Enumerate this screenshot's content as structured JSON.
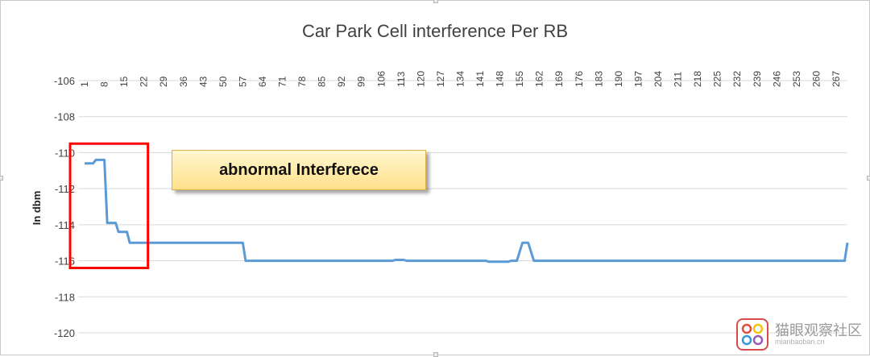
{
  "chart_data": {
    "type": "line",
    "title": "Car Park Cell interference Per RB",
    "ylabel": "In dbm",
    "xlabel": "",
    "ylim": [
      -120,
      -106
    ],
    "yticks": [
      "-106",
      "-108",
      "-110",
      "-112",
      "-114",
      "-116",
      "-118",
      "-120"
    ],
    "xticks": [
      "1",
      "8",
      "15",
      "22",
      "29",
      "36",
      "43",
      "50",
      "57",
      "64",
      "71",
      "78",
      "85",
      "92",
      "99",
      "106",
      "113",
      "120",
      "127",
      "134",
      "141",
      "148",
      "155",
      "162",
      "169",
      "176",
      "183",
      "190",
      "197",
      "204",
      "211",
      "218",
      "225",
      "232",
      "239",
      "246",
      "253",
      "260",
      "267"
    ],
    "x_axis_position": "top",
    "grid": true,
    "legend": "none",
    "series": [
      {
        "color": "#5b9bd5",
        "points": [
          [
            1,
            -110.6
          ],
          [
            4,
            -110.6
          ],
          [
            5,
            -110.4
          ],
          [
            8,
            -110.4
          ],
          [
            9,
            -113.9
          ],
          [
            12,
            -113.9
          ],
          [
            13,
            -114.4
          ],
          [
            16,
            -114.4
          ],
          [
            17,
            -115.0
          ],
          [
            57,
            -115.0
          ],
          [
            58,
            -116.0
          ],
          [
            110,
            -116.0
          ],
          [
            111,
            -115.95
          ],
          [
            114,
            -115.95
          ],
          [
            115,
            -116.0
          ],
          [
            143,
            -116.0
          ],
          [
            144,
            -116.05
          ],
          [
            151,
            -116.05
          ],
          [
            152,
            -116.0
          ],
          [
            154,
            -116.0
          ],
          [
            156,
            -115.0
          ],
          [
            158,
            -115.0
          ],
          [
            160,
            -116.0
          ],
          [
            270,
            -116.0
          ],
          [
            271,
            -115.0
          ]
        ]
      }
    ]
  },
  "annotation": {
    "label": "abnormal Interferece",
    "highlight_color": "#ff0000",
    "highlight_x_range": [
      1,
      22
    ],
    "highlight_y_range": [
      -109.5,
      -116.4
    ]
  },
  "watermark": {
    "text": "猫眼观察社区",
    "subtext": "mianbaoban.cn"
  }
}
